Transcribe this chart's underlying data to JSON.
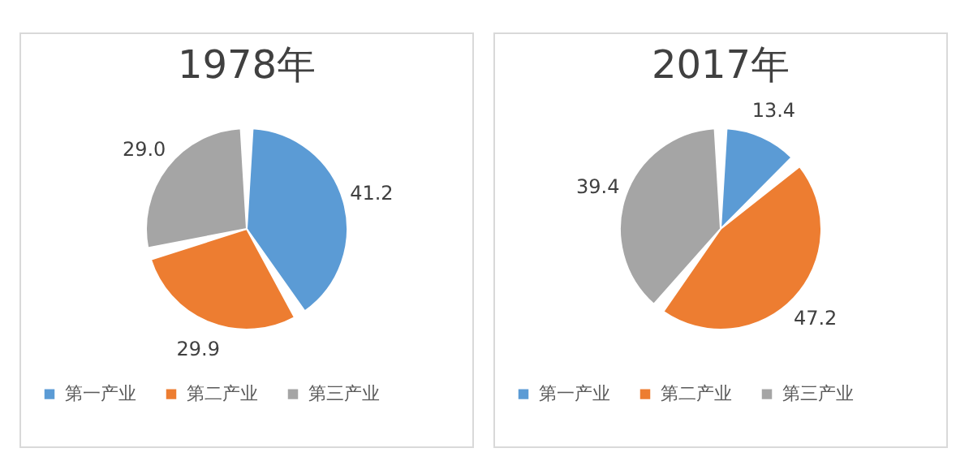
{
  "chart_data": [
    {
      "type": "pie",
      "title": "1978年",
      "categories": [
        "第一产业",
        "第二产业",
        "第三产业"
      ],
      "values": [
        41.2,
        29.9,
        29.0
      ],
      "value_labels": [
        "41.2",
        "29.9",
        "29.0"
      ],
      "colors": [
        "#5b9bd5",
        "#ed7d31",
        "#a5a5a5"
      ],
      "legend": "bottom"
    },
    {
      "type": "pie",
      "title": "2017年",
      "categories": [
        "第一产业",
        "第二产业",
        "第三产业"
      ],
      "values": [
        13.4,
        47.2,
        39.4
      ],
      "value_labels": [
        "13.4",
        "47.2",
        "39.4"
      ],
      "colors": [
        "#5b9bd5",
        "#ed7d31",
        "#a5a5a5"
      ],
      "legend": "bottom"
    }
  ]
}
